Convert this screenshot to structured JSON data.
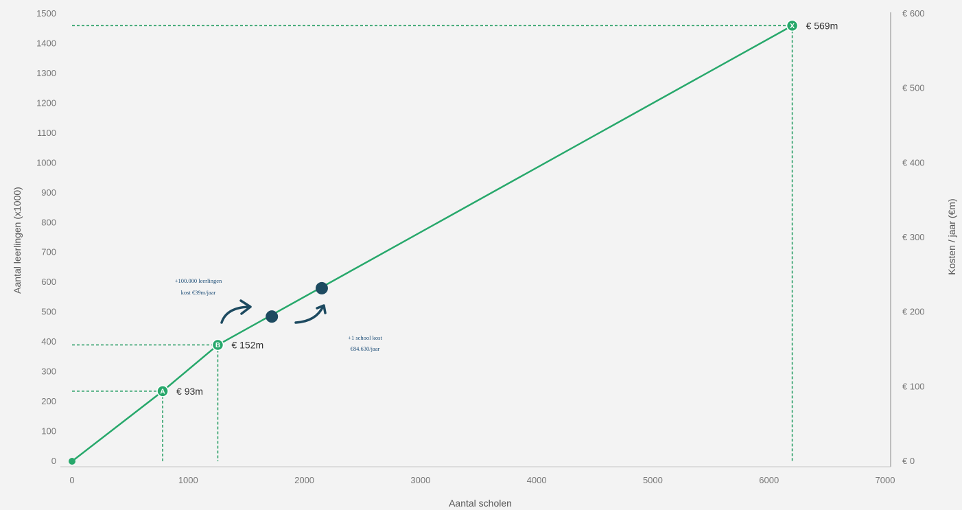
{
  "chart_data": {
    "type": "line",
    "xlabel": "Aantal scholen",
    "ylabel": "Aantal leerlingen (x1000)",
    "ylabel_right": "Kosten / jaar (€m)",
    "xlim": [
      0,
      7000
    ],
    "ylim": [
      0,
      1500
    ],
    "ylim_right": [
      0,
      600
    ],
    "x_ticks": [
      "0",
      "1000",
      "2000",
      "3000",
      "4000",
      "5000",
      "6000",
      "7000"
    ],
    "y_ticks": [
      "0",
      "100",
      "200",
      "300",
      "400",
      "500",
      "600",
      "700",
      "800",
      "900",
      "1000",
      "1100",
      "1200",
      "1300",
      "1400",
      "1500"
    ],
    "y_right_ticks": [
      "€ 0",
      "€ 100",
      "€ 200",
      "€ 300",
      "€ 400",
      "€ 500",
      "€ 600"
    ],
    "grid": false,
    "series": [
      {
        "x": [
          0,
          780,
          1255,
          6200
        ],
        "y": [
          0,
          235,
          390,
          1460
        ]
      }
    ],
    "markers": [
      {
        "label": "A",
        "x": 780,
        "y": 235,
        "cost": "€ 93m"
      },
      {
        "label": "B",
        "x": 1255,
        "y": 390,
        "cost": "€ 152m"
      },
      {
        "label": "X",
        "x": 6200,
        "y": 1460,
        "cost": "€ 569m"
      }
    ],
    "highlight_points": [
      {
        "x": 1720,
        "y": 485
      },
      {
        "x": 2150,
        "y": 580
      }
    ],
    "annotations": [
      {
        "lines": [
          "+100.000 leerlingen",
          "kost €39m/jaar"
        ]
      },
      {
        "lines": [
          "+1 school kost",
          "€84.630/jaar"
        ]
      }
    ]
  }
}
